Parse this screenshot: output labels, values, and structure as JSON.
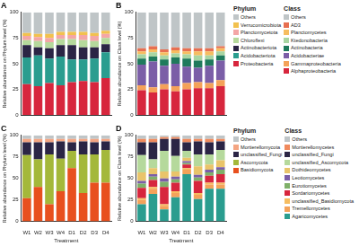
{
  "chart_data": [
    {
      "type": "bar",
      "title": "A",
      "stacked": true,
      "grid": false,
      "legend": "right",
      "legend_title": "Phylum",
      "tick_labels": "y",
      "y_label": "Relative abundance on Phylum level (%)",
      "categories": [
        "W1",
        "W2",
        "W3",
        "W4",
        "D1",
        "D2",
        "D3",
        "D4"
      ],
      "ylim": [
        0,
        100
      ],
      "yticks": [
        0,
        25,
        50,
        75,
        100
      ],
      "series": [
        {
          "name": "Proteobacteria",
          "color": "#d7263d",
          "values": [
            30,
            28,
            31,
            29,
            32,
            33,
            32,
            36
          ]
        },
        {
          "name": "Acidobacteriota",
          "color": "#2a9d8f",
          "values": [
            26,
            30,
            24,
            28,
            22,
            21,
            23,
            25
          ]
        },
        {
          "name": "Actinobacteriota",
          "color": "#2b2545",
          "values": [
            12,
            8,
            10,
            11,
            14,
            12,
            11,
            8
          ]
        },
        {
          "name": "Chloroflexi",
          "color": "#b5d99c",
          "values": [
            5,
            6,
            6,
            6,
            6,
            7,
            6,
            6
          ]
        },
        {
          "name": "Planctomycetota",
          "color": "#f4a6a6",
          "values": [
            4,
            4,
            4,
            4,
            4,
            5,
            5,
            4
          ]
        },
        {
          "name": "Verrucomicrobiota",
          "color": "#f2c14e",
          "values": [
            3,
            3,
            4,
            3,
            3,
            3,
            3,
            3
          ]
        },
        {
          "name": "Others",
          "color": "#bfc5c7",
          "values": [
            20,
            21,
            21,
            19,
            19,
            19,
            20,
            18
          ]
        }
      ]
    },
    {
      "type": "bar",
      "title": "B",
      "stacked": true,
      "grid": false,
      "legend": "right",
      "legend_title": "Class",
      "tick_labels": "y",
      "y_label": "Relative abundance on Class level (%)",
      "categories": [
        "W1",
        "W2",
        "W3",
        "W4",
        "D1",
        "D2",
        "D3",
        "D4"
      ],
      "ylim": [
        0,
        100
      ],
      "yticks": [
        0,
        25,
        50,
        75,
        100
      ],
      "series": [
        {
          "name": "Alphaproteobacteria",
          "color": "#d7263d",
          "values": [
            24,
            22,
            25,
            23,
            25,
            26,
            26,
            28
          ]
        },
        {
          "name": "Gammaproteobacteria",
          "color": "#f4a259",
          "values": [
            5,
            5,
            5,
            5,
            6,
            6,
            5,
            6
          ]
        },
        {
          "name": "Acidobacteriae",
          "color": "#7b5ea7",
          "values": [
            20,
            25,
            18,
            22,
            16,
            14,
            17,
            19
          ]
        },
        {
          "name": "Actinobacteria",
          "color": "#1f7a5c",
          "values": [
            6,
            5,
            6,
            6,
            8,
            7,
            6,
            5
          ]
        },
        {
          "name": "Ktedonobacteria",
          "color": "#a8d5a2",
          "values": [
            4,
            4,
            4,
            4,
            4,
            5,
            4,
            4
          ]
        },
        {
          "name": "Planctomycetes",
          "color": "#f6bd60",
          "values": [
            3,
            3,
            3,
            3,
            3,
            4,
            4,
            3
          ]
        },
        {
          "name": "AD3",
          "color": "#e76f51",
          "values": [
            3,
            3,
            3,
            3,
            3,
            3,
            3,
            2
          ]
        },
        {
          "name": "Others",
          "color": "#bfc5c7",
          "values": [
            35,
            33,
            36,
            34,
            35,
            35,
            35,
            33
          ]
        }
      ]
    },
    {
      "type": "bar",
      "title": "C",
      "stacked": true,
      "grid": false,
      "legend": "right",
      "legend_title": "Phylum",
      "x_label": "Treatment",
      "y_label": "Relative abundance on Phylum level (%)",
      "categories": [
        "W1",
        "W2",
        "W3",
        "W4",
        "D1",
        "D2",
        "D3",
        "D4"
      ],
      "ylim": [
        0,
        100
      ],
      "yticks": [
        0,
        25,
        50,
        75,
        100
      ],
      "series": [
        {
          "name": "Basidiomycota",
          "color": "#e8501e",
          "values": [
            27,
            40,
            20,
            35,
            62,
            33,
            45,
            45
          ]
        },
        {
          "name": "Ascomycota",
          "color": "#a4b83a",
          "values": [
            50,
            32,
            58,
            38,
            20,
            45,
            33,
            38
          ]
        },
        {
          "name": "unclassified_Fungi",
          "color": "#2b2545",
          "values": [
            15,
            20,
            14,
            20,
            10,
            15,
            14,
            10
          ]
        },
        {
          "name": "Mortierellomycota",
          "color": "#f4a582",
          "values": [
            4,
            4,
            4,
            3,
            4,
            3,
            4,
            3
          ]
        },
        {
          "name": "Others",
          "color": "#bfc5c7",
          "values": [
            4,
            4,
            4,
            4,
            4,
            4,
            4,
            4
          ]
        }
      ]
    },
    {
      "type": "bar",
      "title": "D",
      "stacked": true,
      "grid": false,
      "legend": "right",
      "legend_title": "Class",
      "x_label": "Treatment",
      "y_label": "Relative abundance on Class level (%)",
      "categories": [
        "W1",
        "W2",
        "W3",
        "W4",
        "D1",
        "D2",
        "D3",
        "D4"
      ],
      "ylim": [
        0,
        100
      ],
      "yticks": [
        0,
        25,
        50,
        75,
        100
      ],
      "series": [
        {
          "name": "Agaricomycetes",
          "color": "#2a9d8f",
          "values": [
            20,
            32,
            14,
            28,
            55,
            26,
            38,
            38
          ]
        },
        {
          "name": "Tremellomycetes",
          "color": "#f4a259",
          "values": [
            5,
            6,
            4,
            5,
            5,
            5,
            5,
            5
          ]
        },
        {
          "name": "unclassified_Basidiomycota",
          "color": "#f6bd60",
          "values": [
            2,
            2,
            2,
            2,
            2,
            2,
            2,
            2
          ]
        },
        {
          "name": "Sordariomycetes",
          "color": "#d7263d",
          "values": [
            12,
            8,
            20,
            10,
            4,
            14,
            8,
            10
          ]
        },
        {
          "name": "Eurotiomycetes",
          "color": "#7fb069",
          "values": [
            5,
            4,
            6,
            4,
            2,
            4,
            4,
            5
          ]
        },
        {
          "name": "Leotiomycetes",
          "color": "#7b5ea7",
          "values": [
            3,
            3,
            4,
            3,
            2,
            3,
            3,
            3
          ]
        },
        {
          "name": "Dothideomycetes",
          "color": "#e9c46a",
          "values": [
            10,
            7,
            8,
            6,
            4,
            10,
            6,
            8
          ]
        },
        {
          "name": "unclassified_Ascomycota",
          "color": "#b5d99c",
          "values": [
            20,
            10,
            24,
            18,
            8,
            14,
            12,
            12
          ]
        },
        {
          "name": "unclassified_Fungi",
          "color": "#2b2545",
          "values": [
            15,
            20,
            14,
            20,
            10,
            15,
            14,
            10
          ]
        },
        {
          "name": "Mortierellomycetes",
          "color": "#f08a5d",
          "values": [
            4,
            4,
            2,
            2,
            4,
            3,
            4,
            3
          ]
        },
        {
          "name": "Others",
          "color": "#bfc5c7",
          "values": [
            4,
            4,
            2,
            2,
            4,
            4,
            4,
            4
          ]
        }
      ]
    }
  ]
}
